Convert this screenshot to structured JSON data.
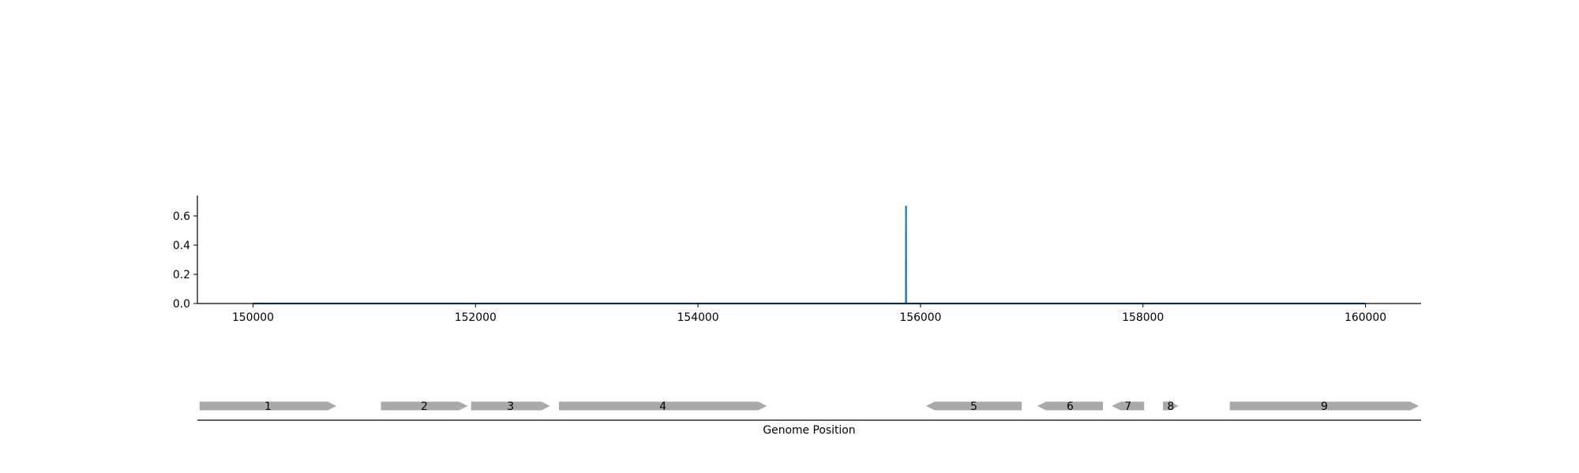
{
  "chart_data": [
    {
      "type": "line",
      "title": "",
      "xlabel": "",
      "ylabel": "",
      "xlim": [
        149500,
        160500
      ],
      "ylim": [
        0,
        0.74
      ],
      "xticks": [
        150000,
        152000,
        154000,
        156000,
        158000,
        160000
      ],
      "xtick_labels": [
        "150000",
        "152000",
        "154000",
        "156000",
        "158000",
        "160000"
      ],
      "yticks": [
        0.0,
        0.2,
        0.4,
        0.6
      ],
      "ytick_labels": [
        "0.0",
        "0.2",
        "0.4",
        "0.6"
      ],
      "grid": false,
      "series": [
        {
          "color": "#1f77b4",
          "x": [
            150000,
            155869,
            155870,
            155871,
            160000
          ],
          "y": [
            0,
            0,
            0.67,
            0,
            0
          ]
        }
      ]
    },
    {
      "type": "gene_map",
      "xlabel": "Genome Position",
      "xlim": [
        149500,
        160500
      ],
      "feature_color": "#a9a9a9",
      "features": [
        {
          "label": "1",
          "start": 149520,
          "end": 150750,
          "strand": "+"
        },
        {
          "label": "2",
          "start": 151150,
          "end": 151930,
          "strand": "+"
        },
        {
          "label": "3",
          "start": 151960,
          "end": 152670,
          "strand": "+"
        },
        {
          "label": "4",
          "start": 152750,
          "end": 154620,
          "strand": "+"
        },
        {
          "label": "5",
          "start": 156050,
          "end": 156910,
          "strand": "-"
        },
        {
          "label": "6",
          "start": 157050,
          "end": 157640,
          "strand": "-"
        },
        {
          "label": "7",
          "start": 157720,
          "end": 158010,
          "strand": "-"
        },
        {
          "label": "8",
          "start": 158180,
          "end": 158320,
          "strand": "+"
        },
        {
          "label": "9",
          "start": 158780,
          "end": 160480,
          "strand": "+"
        }
      ]
    }
  ]
}
